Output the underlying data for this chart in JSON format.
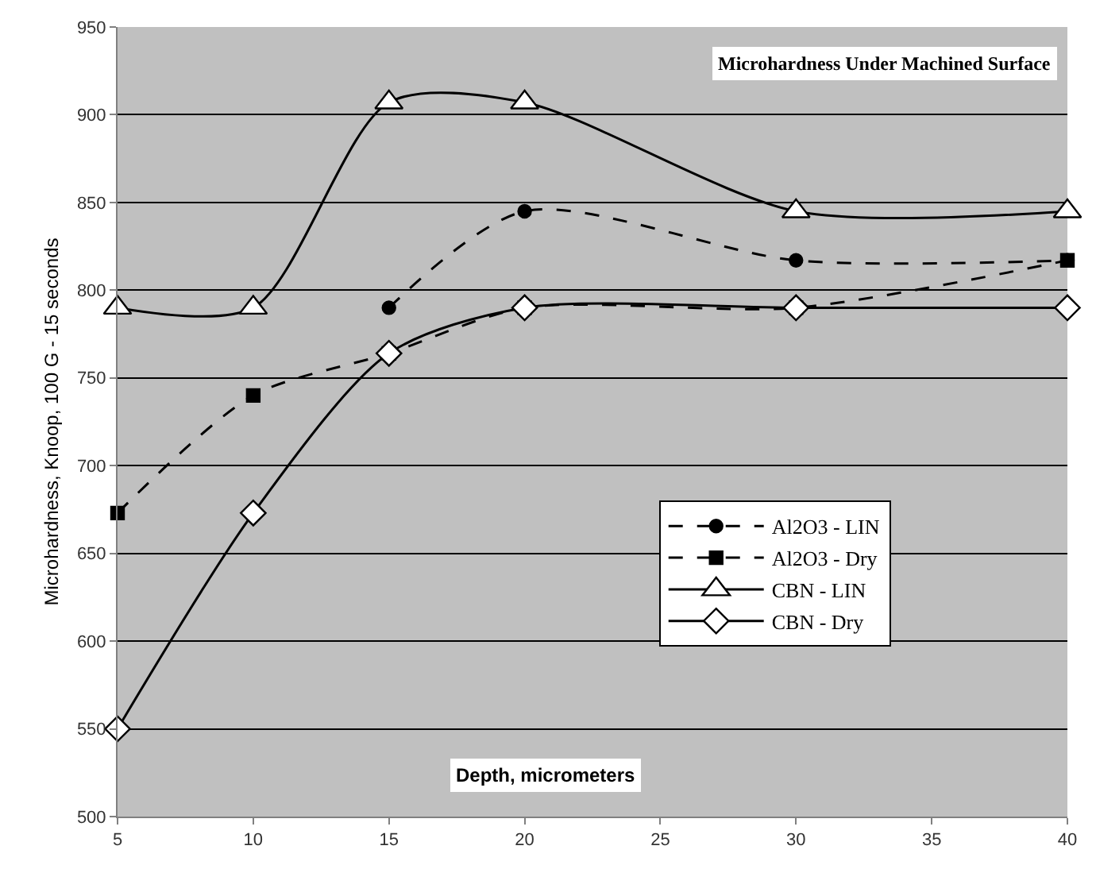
{
  "chart_data": {
    "type": "line",
    "title": "Microhardness Under Machined Surface",
    "xlabel": "Depth, micrometers",
    "ylabel": "Microhardness, Knoop, 100 G - 15 seconds",
    "x": [
      5,
      10,
      15,
      20,
      30,
      40
    ],
    "series": [
      {
        "name": "Al2O3 - LIN",
        "color": "#000000",
        "marker": "circle",
        "line_style": "dashed",
        "values": [
          null,
          null,
          790,
          845,
          817,
          817
        ]
      },
      {
        "name": "Al2O3 - Dry",
        "color": "#000000",
        "marker": "square",
        "line_style": "dashed",
        "values": [
          673,
          740,
          764,
          790,
          790,
          817
        ]
      },
      {
        "name": "CBN - LIN",
        "color": "#000000",
        "marker": "triangle",
        "line_style": "solid",
        "values": [
          790,
          790,
          907,
          907,
          845,
          845
        ]
      },
      {
        "name": "CBN - Dry",
        "color": "#000000",
        "marker": "diamond",
        "line_style": "solid",
        "values": [
          550,
          673,
          764,
          790,
          790,
          790
        ]
      }
    ],
    "xlim": [
      5,
      40
    ],
    "xticks": [
      5,
      10,
      15,
      20,
      25,
      30,
      35,
      40
    ],
    "ylim": [
      500,
      950
    ],
    "yticks": [
      500,
      550,
      600,
      650,
      700,
      750,
      800,
      850,
      900,
      950
    ],
    "grid": "y",
    "legend": "bottom right"
  }
}
